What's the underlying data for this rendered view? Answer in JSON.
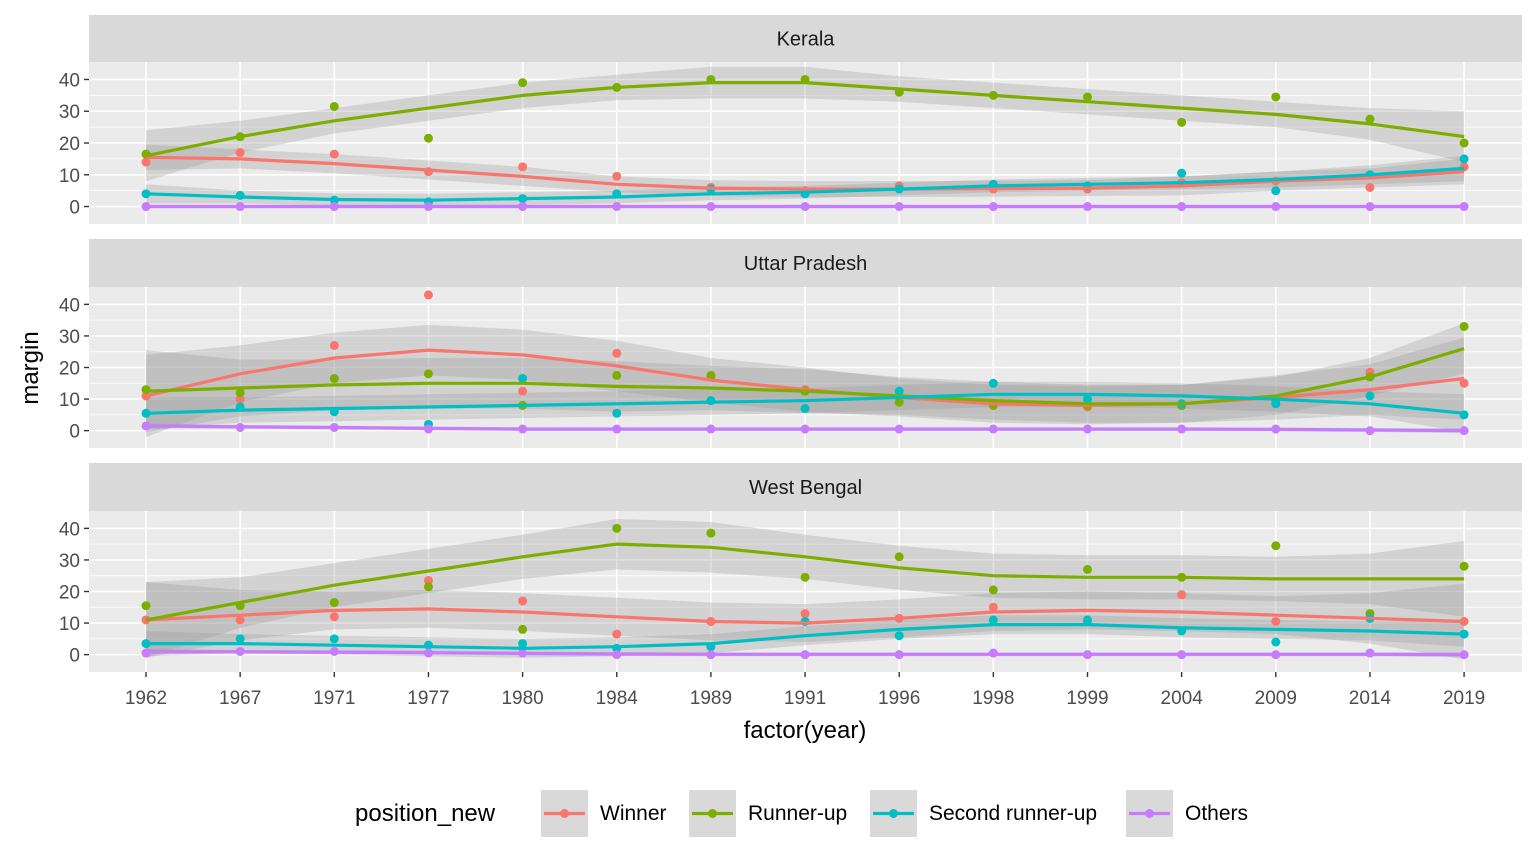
{
  "chart_data": {
    "type": "line",
    "subtype": "faceted scatter with loess smooth and confidence band",
    "x": [
      "1962",
      "1967",
      "1971",
      "1977",
      "1980",
      "1984",
      "1989",
      "1991",
      "1996",
      "1998",
      "1999",
      "2004",
      "2009",
      "2014",
      "2019"
    ],
    "xlabel": "factor(year)",
    "ylabel": "margin",
    "yticks": [
      0,
      10,
      20,
      30,
      40
    ],
    "ylim": [
      -5.5,
      45.5
    ],
    "grid": true,
    "legend": {
      "title": "position_new",
      "placement": "bottom",
      "entries": [
        "Winner",
        "Runner-up",
        "Second runner-up",
        "Others"
      ]
    },
    "series_colors": {
      "Winner": "#F8766D",
      "Runner-up": "#7CAE00",
      "Second runner-up": "#00BFC4",
      "Others": "#C77CFF"
    },
    "band_color": "#999999",
    "panel_background": "#EBEBEB",
    "strip_background": "#D9D9D9",
    "facets": [
      {
        "label": "Kerala",
        "series": [
          {
            "name": "Winner",
            "points": [
              14,
              17,
              16.5,
              11,
              12.5,
              9.5,
              6,
              5,
              6.5,
              5.5,
              5.5,
              7.5,
              8,
              6,
              12.5
            ],
            "smooth": [
              15.5,
              15,
              13.5,
              11.5,
              9.5,
              7,
              5.8,
              5.5,
              5.5,
              5.6,
              5.8,
              6.5,
              8,
              9,
              11
            ],
            "band": [
              4,
              3,
              3,
              3,
              3,
              2.5,
              2.5,
              2.5,
              2.5,
              2.5,
              2.5,
              3,
              3,
              3,
              4
            ]
          },
          {
            "name": "Runner-up",
            "points": [
              16.5,
              22,
              31.5,
              21.5,
              39,
              37.5,
              40,
              40,
              36,
              35,
              34.5,
              26.5,
              34.5,
              27.5,
              20
            ],
            "smooth": [
              16,
              22,
              27,
              31,
              35,
              37.5,
              39,
              39,
              37,
              35,
              33,
              31,
              29,
              26,
              22
            ],
            "band": [
              8,
              5,
              4,
              4,
              4,
              4,
              5,
              5,
              4,
              4,
              4,
              4,
              4,
              5,
              8
            ]
          },
          {
            "name": "Second runner-up",
            "points": [
              4,
              3.5,
              2,
              1.5,
              2.5,
              4,
              5.5,
              4,
              5.5,
              7,
              6.5,
              10.5,
              5,
              10,
              15
            ],
            "smooth": [
              4,
              3,
              2.2,
              2,
              2.5,
              3,
              4,
              4.5,
              5.5,
              6.5,
              7,
              7.5,
              8.5,
              10,
              12
            ],
            "band": [
              3,
              2,
              2,
              2,
              2,
              2,
              2,
              2,
              2,
              2,
              2,
              2,
              2.5,
              3,
              4
            ]
          },
          {
            "name": "Others",
            "points": [
              0,
              0,
              0,
              0,
              0,
              0,
              0,
              0,
              0,
              0,
              0,
              0,
              0,
              0,
              0
            ],
            "smooth": [
              0,
              0,
              0,
              0,
              0,
              0,
              0,
              0,
              0,
              0,
              0,
              0,
              0,
              0,
              0
            ],
            "band": [
              0.5,
              0.5,
              0.5,
              0.5,
              0.5,
              0.5,
              0.5,
              0.5,
              0.5,
              0.5,
              0.5,
              0.5,
              0.5,
              0.5,
              0.5
            ]
          }
        ]
      },
      {
        "label": "Uttar Pradesh",
        "series": [
          {
            "name": "Winner",
            "points": [
              11,
              10,
              27,
              43,
              12.5,
              24.5,
              17,
              13,
              10.5,
              8,
              7.5,
              8,
              10,
              18.5,
              15
            ],
            "smooth": [
              11,
              18,
              23,
              25.5,
              24,
              20.5,
              16,
              13,
              10.5,
              8.5,
              8,
              8.5,
              10.5,
              13,
              16.5
            ],
            "band": [
              13,
              9,
              8,
              8,
              8,
              8,
              7,
              7,
              6,
              6,
              6,
              6,
              7,
              8,
              13
            ]
          },
          {
            "name": "Runner-up",
            "points": [
              13,
              12,
              16.5,
              18,
              8,
              17.5,
              17.5,
              12.5,
              9,
              8,
              8,
              8,
              9.5,
              17,
              33
            ],
            "smooth": [
              12.5,
              13.5,
              14.5,
              15,
              15,
              14,
              13.5,
              12.5,
              11,
              9.5,
              8.5,
              8.5,
              11,
              17,
              26
            ],
            "band": [
              13,
              9,
              8,
              8,
              8,
              8,
              7,
              7,
              6,
              6,
              6,
              6,
              6,
              6,
              8
            ]
          },
          {
            "name": "Second runner-up",
            "points": [
              5.5,
              7.5,
              6,
              2,
              16.5,
              5.5,
              9.5,
              7,
              12.5,
              15,
              10,
              8.5,
              8.5,
              11,
              5
            ],
            "smooth": [
              5.5,
              6.5,
              7,
              7.5,
              8,
              8.5,
              9,
              9.5,
              10.5,
              11.5,
              11.5,
              11,
              10,
              8.5,
              5.5
            ],
            "band": [
              5,
              4,
              4,
              4,
              4,
              4,
              4,
              4,
              4,
              4,
              4,
              4,
              4,
              4,
              6
            ]
          },
          {
            "name": "Others",
            "points": [
              1.5,
              1,
              1,
              0.5,
              0.5,
              0.5,
              0.5,
              0.5,
              0.5,
              0.5,
              0.5,
              0.5,
              0.5,
              0,
              0
            ],
            "smooth": [
              1.5,
              1.2,
              1,
              0.7,
              0.5,
              0.5,
              0.5,
              0.5,
              0.5,
              0.5,
              0.5,
              0.5,
              0.4,
              0.2,
              0
            ],
            "band": [
              0.8,
              0.6,
              0.6,
              0.6,
              0.6,
              0.6,
              0.6,
              0.6,
              0.6,
              0.6,
              0.6,
              0.6,
              0.6,
              0.6,
              0.8
            ]
          }
        ]
      },
      {
        "label": "West Bengal",
        "series": [
          {
            "name": "Winner",
            "points": [
              11,
              11,
              12,
              23.5,
              17,
              6.5,
              10.5,
              13,
              11.5,
              15,
              10.5,
              19,
              10.5,
              11.5,
              10.5
            ],
            "smooth": [
              11,
              12.5,
              14,
              14.5,
              13.5,
              12,
              10.5,
              10,
              11.5,
              13.5,
              14,
              13.5,
              12.5,
              11.5,
              10.5
            ],
            "band": [
              12,
              8,
              6,
              6,
              6,
              6,
              6,
              6,
              6,
              6,
              6,
              6,
              6,
              8,
              12
            ]
          },
          {
            "name": "Runner-up",
            "points": [
              15.5,
              15.5,
              16.5,
              21.5,
              8,
              40,
              38.5,
              24.5,
              31,
              20.5,
              27,
              24.5,
              34.5,
              13,
              28
            ],
            "smooth": [
              11,
              16.5,
              22,
              26.5,
              31,
              35,
              34,
              31,
              27.5,
              25,
              24.5,
              24.5,
              24,
              24,
              24
            ],
            "band": [
              12,
              8,
              7,
              7,
              7,
              8,
              8,
              7,
              7,
              7,
              7,
              7,
              7,
              8,
              12
            ]
          },
          {
            "name": "Second runner-up",
            "points": [
              3.5,
              5,
              5,
              3,
              3.5,
              2,
              2.5,
              10.5,
              6,
              11,
              11,
              7.5,
              4,
              11.5,
              6.5
            ],
            "smooth": [
              3.5,
              3.5,
              3,
              2.5,
              2,
              2.5,
              3.5,
              6,
              8,
              9.5,
              9.5,
              8.5,
              8,
              7.5,
              6.5
            ],
            "band": [
              4,
              3,
              3,
              3,
              3,
              3,
              3,
              3,
              3,
              3,
              3,
              3,
              3,
              3,
              4
            ]
          },
          {
            "name": "Others",
            "points": [
              0.5,
              1,
              1,
              0.5,
              0.5,
              0,
              0,
              0,
              0,
              0.5,
              0,
              0,
              0,
              0.5,
              0
            ],
            "smooth": [
              1,
              0.9,
              0.8,
              0.6,
              0.4,
              0.2,
              0.1,
              0.1,
              0.1,
              0.1,
              0.1,
              0.1,
              0.1,
              0.1,
              0
            ],
            "band": [
              0.8,
              0.6,
              0.6,
              0.6,
              0.6,
              0.6,
              0.6,
              0.6,
              0.6,
              0.6,
              0.6,
              0.6,
              0.6,
              0.6,
              0.8
            ]
          }
        ]
      }
    ]
  }
}
